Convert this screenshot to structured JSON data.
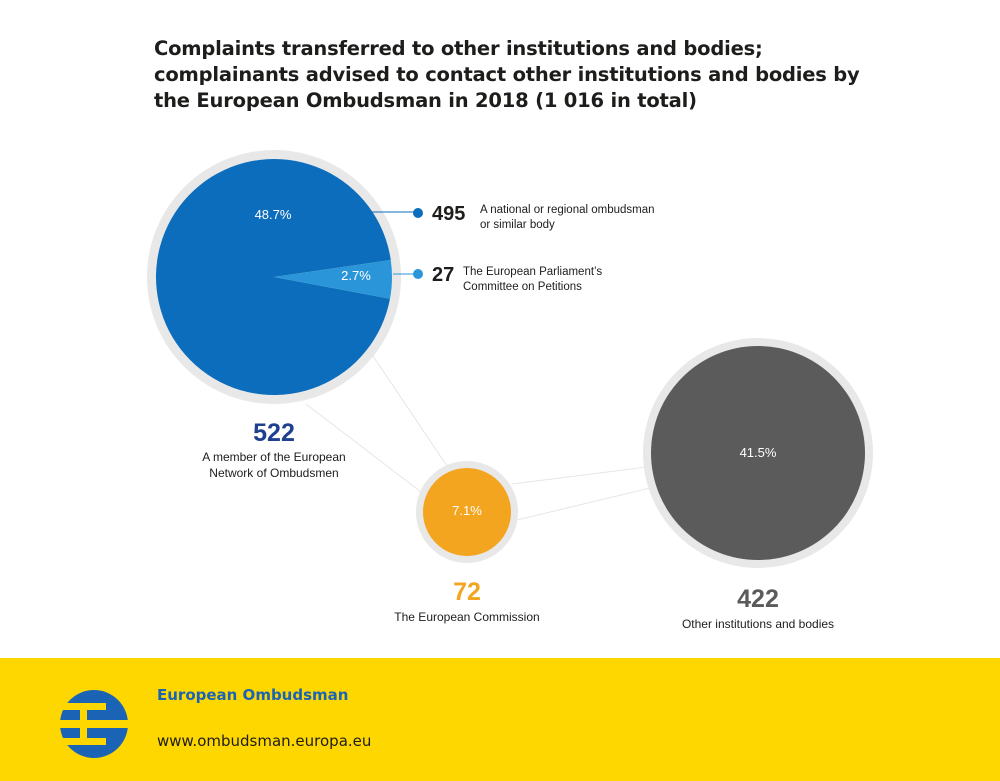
{
  "title_lines": [
    "Complaints transferred to other institutions and bodies;",
    "complainants advised to contact other institutions and bodies by",
    "the European Ombudsman in 2018 (1 016 in total)"
  ],
  "chart_data": {
    "type": "pie",
    "total": 1016,
    "groups": [
      {
        "id": "network",
        "value": "522",
        "label_lines": [
          "A member of the European",
          "Network of Ombudsmen"
        ],
        "color": "#0b6dbb",
        "value_color": "#1f3f8f",
        "slices": [
          {
            "id": "national",
            "percent": 48.7,
            "percent_label": "48.7%",
            "value": "495",
            "label_lines": [
              "A national or regional ombudsman",
              "or similar body"
            ],
            "color": "#0b6dbb"
          },
          {
            "id": "parliament",
            "percent": 2.7,
            "percent_label": "2.7%",
            "value": "27",
            "label_lines": [
              "The European Parliament’s",
              "Committee on Petitions"
            ],
            "color": "#2a96d9"
          }
        ]
      },
      {
        "id": "commission",
        "value": "72",
        "percent": 7.1,
        "percent_label": "7.1%",
        "label_lines": [
          "The European Commission"
        ],
        "color": "#f3a51f",
        "value_color": "#f3a51f"
      },
      {
        "id": "other",
        "value": "422",
        "percent": 41.5,
        "percent_label": "41.5%",
        "label_lines": [
          "Other institutions and bodies"
        ],
        "color": "#5b5b5b",
        "value_color": "#5b5b5b"
      }
    ]
  },
  "footer": {
    "brand": "European Ombudsman",
    "url": "www.ombudsman.europa.eu",
    "background": "#ffd700",
    "brand_color": "#1a63b5"
  }
}
